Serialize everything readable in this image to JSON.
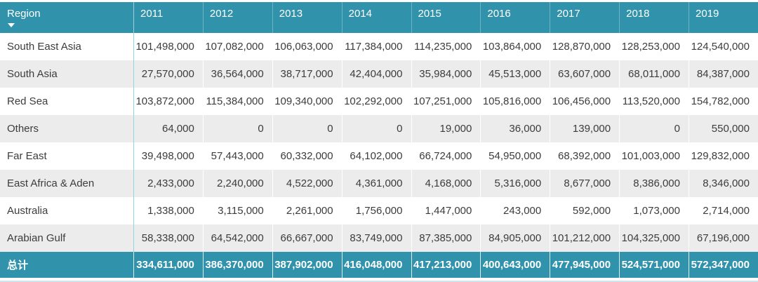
{
  "colors": {
    "header_bg": "#3193ab",
    "total_bg": "#3193ab",
    "header_text": "#ffffff",
    "body_text": "#3c3c3c",
    "row_bg": "#ffffff",
    "stripe_bg": "#ececec",
    "region_divider": "#8fd6de",
    "cell_divider": "#ffffff",
    "total_divider": "#ddeef3",
    "bottom_edge": "#cfe5eb"
  },
  "header": {
    "sort_icon": "sort-descending-triangle"
  },
  "chart_data": {
    "type": "table",
    "title": "",
    "row_header": "Region",
    "columns": [
      "2011",
      "2012",
      "2013",
      "2014",
      "2015",
      "2016",
      "2017",
      "2018",
      "2019"
    ],
    "rows": [
      {
        "region": "South East Asia",
        "values": [
          101498000,
          107082000,
          106063000,
          117384000,
          114235000,
          103864000,
          128870000,
          128253000,
          124540000
        ]
      },
      {
        "region": "South Asia",
        "values": [
          27570000,
          36564000,
          38717000,
          42404000,
          35984000,
          45513000,
          63607000,
          68011000,
          84387000
        ]
      },
      {
        "region": "Red Sea",
        "values": [
          103872000,
          115384000,
          109340000,
          102292000,
          107251000,
          105816000,
          106456000,
          113520000,
          154782000
        ]
      },
      {
        "region": "Others",
        "values": [
          64000,
          0,
          0,
          0,
          19000,
          36000,
          139000,
          0,
          550000
        ]
      },
      {
        "region": "Far East",
        "values": [
          39498000,
          57443000,
          60332000,
          64102000,
          66724000,
          54950000,
          68392000,
          101003000,
          129832000
        ]
      },
      {
        "region": "East Africa & Aden",
        "values": [
          2433000,
          2240000,
          4522000,
          4361000,
          4168000,
          5316000,
          8677000,
          8386000,
          8346000
        ]
      },
      {
        "region": "Australia",
        "values": [
          1338000,
          3115000,
          2261000,
          1756000,
          1447000,
          243000,
          592000,
          1073000,
          2714000
        ]
      },
      {
        "region": "Arabian Gulf",
        "values": [
          58338000,
          64542000,
          66667000,
          83749000,
          87385000,
          84905000,
          101212000,
          104325000,
          67196000
        ]
      }
    ],
    "total": {
      "label": "总计",
      "values": [
        334611000,
        386370000,
        387902000,
        416048000,
        417213000,
        400643000,
        477945000,
        524571000,
        572347000
      ]
    }
  }
}
